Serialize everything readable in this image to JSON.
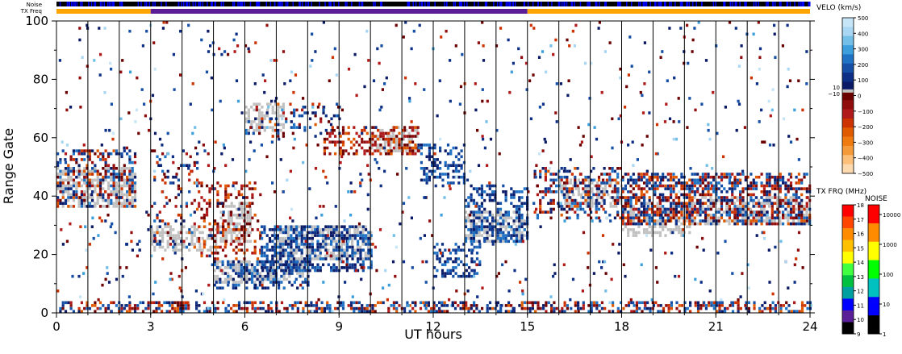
{
  "chart_data": {
    "type": "heatmap",
    "title": "",
    "xlabel": "UT hours",
    "ylabel": "Range Gate",
    "xlim": [
      0,
      24
    ],
    "ylim": [
      0,
      100
    ],
    "x_ticks": [
      "0",
      "3",
      "6",
      "9",
      "12",
      "15",
      "18",
      "21",
      "24"
    ],
    "y_ticks": [
      "0",
      "20",
      "40",
      "60",
      "80",
      "100"
    ],
    "grid": "vertical lines at scan boundaries",
    "top_bars": {
      "noise_label": "Noise",
      "txfreq_label": "TX Freq",
      "txfreq_segments": [
        {
          "start": 0,
          "end": 3,
          "color": "#ffa500"
        },
        {
          "start": 3,
          "end": 15,
          "color": "#5a1f96"
        },
        {
          "start": 15,
          "end": 24,
          "color": "#ffa500"
        }
      ]
    },
    "velocity_scale": {
      "title": "VELO (km/s)",
      "ticks": [
        "500",
        "400",
        "300",
        "200",
        "100",
        "0",
        "−100",
        "−200",
        "−300",
        "−400",
        "−500"
      ],
      "ground_scatter_ticks": [
        "10",
        "−10"
      ],
      "colors": [
        "#c6e6f7",
        "#a9d6f2",
        "#73bfe8",
        "#3c9fdc",
        "#1f72c4",
        "#154fa6",
        "#0d2f85",
        "#0a1a66",
        "#6b0000",
        "#8f0d0d",
        "#b01a1a",
        "#cc3300",
        "#e05a00",
        "#ee7a10",
        "#f59a3a",
        "#fbbf7a",
        "#fdd9b0"
      ],
      "ground_scatter_color": "#c0c0c0"
    },
    "txfreq_scale": {
      "title": "TX FRQ (MHz)",
      "ticks": [
        "18",
        "17",
        "16",
        "15",
        "14",
        "13",
        "12",
        "11",
        "10",
        "9"
      ],
      "colors": [
        "#ff0000",
        "#ff4500",
        "#ff8c00",
        "#ffc000",
        "#ffff00",
        "#40ff40",
        "#00c040",
        "#00a0a0",
        "#0000ff",
        "#5a1f96",
        "#000000"
      ]
    },
    "noise_scale": {
      "title": "NOISE",
      "ticks": [
        "10000",
        "1000",
        "100",
        "10",
        "1"
      ],
      "colors": [
        "#ff0000",
        "#ff8c00",
        "#ffff00",
        "#00ff00",
        "#00c0c0",
        "#0000ff",
        "#000000"
      ]
    },
    "ground_scatter_bands": [
      {
        "t0": 0.0,
        "t1": 2.5,
        "g0": 36,
        "g1": 50
      },
      {
        "t0": 3.0,
        "t1": 5.2,
        "g0": 21,
        "g1": 30
      },
      {
        "t0": 5.2,
        "t1": 6.2,
        "g0": 24,
        "g1": 38
      },
      {
        "t0": 6.0,
        "t1": 7.2,
        "g0": 62,
        "g1": 72
      },
      {
        "t0": 5.0,
        "t1": 8.0,
        "g0": 10,
        "g1": 18
      },
      {
        "t0": 7.0,
        "t1": 10.0,
        "g0": 18,
        "g1": 30
      },
      {
        "t0": 10.0,
        "t1": 11.5,
        "g0": 55,
        "g1": 64
      },
      {
        "t0": 13.0,
        "t1": 15.0,
        "g0": 24,
        "g1": 35
      },
      {
        "t0": 16.0,
        "t1": 18.0,
        "g0": 36,
        "g1": 46
      },
      {
        "t0": 18.0,
        "t1": 20.2,
        "g0": 26,
        "g1": 38
      },
      {
        "t0": 20.2,
        "t1": 24.0,
        "g0": 30,
        "g1": 40
      }
    ],
    "velocity_echo_bands": [
      {
        "t0": 0.0,
        "t1": 2.5,
        "g0": 36,
        "g1": 56,
        "density": 0.35,
        "sign": "mixed"
      },
      {
        "t0": 3.0,
        "t1": 4.5,
        "g0": 22,
        "g1": 56,
        "density": 0.12,
        "sign": "mixed"
      },
      {
        "t0": 4.5,
        "t1": 6.5,
        "g0": 18,
        "g1": 45,
        "density": 0.25,
        "sign": "negative"
      },
      {
        "t0": 5.0,
        "t1": 8.0,
        "g0": 8,
        "g1": 18,
        "density": 0.35,
        "sign": "positive"
      },
      {
        "t0": 6.0,
        "t1": 9.0,
        "g0": 60,
        "g1": 72,
        "density": 0.15,
        "sign": "mixed"
      },
      {
        "t0": 6.5,
        "t1": 10.0,
        "g0": 14,
        "g1": 30,
        "density": 0.5,
        "sign": "positive"
      },
      {
        "t0": 8.5,
        "t1": 11.5,
        "g0": 54,
        "g1": 64,
        "density": 0.45,
        "sign": "negative"
      },
      {
        "t0": 11.5,
        "t1": 13.0,
        "g0": 44,
        "g1": 58,
        "density": 0.35,
        "sign": "positive"
      },
      {
        "t0": 12.0,
        "t1": 13.5,
        "g0": 12,
        "g1": 24,
        "density": 0.4,
        "sign": "positive"
      },
      {
        "t0": 13.0,
        "t1": 15.0,
        "g0": 24,
        "g1": 44,
        "density": 0.45,
        "sign": "positive"
      },
      {
        "t0": 15.2,
        "t1": 18.0,
        "g0": 32,
        "g1": 50,
        "density": 0.35,
        "sign": "mixed"
      },
      {
        "t0": 18.0,
        "t1": 24.0,
        "g0": 30,
        "g1": 48,
        "density": 0.55,
        "sign": "mixed"
      },
      {
        "t0": 0.0,
        "t1": 24.0,
        "g0": 0,
        "g1": 4,
        "density": 0.45,
        "sign": "mixed"
      }
    ]
  }
}
